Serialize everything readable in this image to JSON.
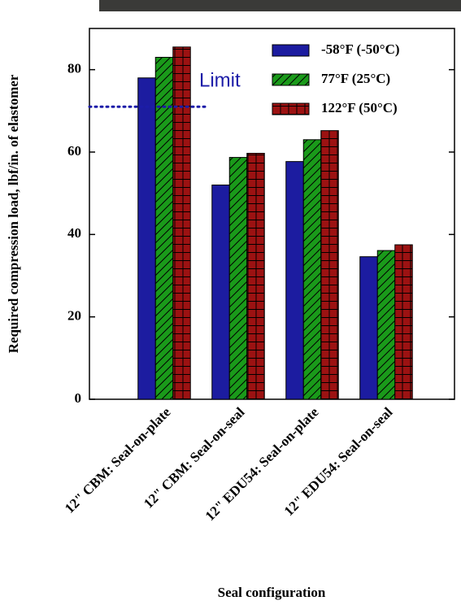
{
  "chart_data": {
    "type": "bar",
    "x_label": "Seal configuration",
    "y_label": "Required compression load, lbf/in. of elastomer",
    "categories": [
      "12\" CBM: Seal-on-plate",
      "12\" CBM: Seal-on-seal",
      "12\" EDU54: Seal-on-plate",
      "12\" EDU54: Seal-on-seal"
    ],
    "series": [
      {
        "name": "-58°F (-50°C)",
        "color": "#1c1ca0",
        "values": [
          78,
          52,
          57.7,
          34.6
        ]
      },
      {
        "name": "77°F (25°C)",
        "color": "#1a9a1a",
        "values": [
          83,
          58.7,
          63,
          36.1
        ]
      },
      {
        "name": "122°F (50°C)",
        "color": "#9c1212",
        "values": [
          85.5,
          59.7,
          65.2,
          37.5
        ]
      }
    ],
    "limit": {
      "label": "Limit",
      "value": 71
    },
    "ylim": [
      0,
      90
    ],
    "yticks": [
      0,
      20,
      40,
      60,
      80
    ]
  }
}
